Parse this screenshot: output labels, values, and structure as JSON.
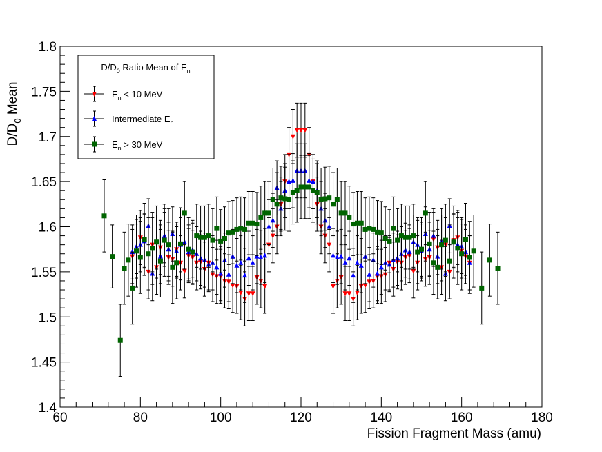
{
  "chart_data": {
    "type": "scatter",
    "title": "",
    "xlabel": "Fission Fragment Mass (amu)",
    "ylabel": {
      "main": "D/D",
      "sub": "0",
      "tail": " Mean"
    },
    "xlim": [
      60,
      180
    ],
    "ylim": [
      1.4,
      1.8
    ],
    "x_ticks": [
      60,
      80,
      100,
      120,
      140,
      160,
      180
    ],
    "y_ticks": [
      1.4,
      1.45,
      1.5,
      1.55,
      1.6,
      1.65,
      1.7,
      1.75,
      1.8
    ],
    "x_tick_labels": [
      "60",
      "80",
      "100",
      "120",
      "140",
      "160",
      "180"
    ],
    "y_tick_labels": [
      "1.4",
      "1.45",
      "1.5",
      "1.55",
      "1.6",
      "1.65",
      "1.7",
      "1.75",
      "1.8"
    ],
    "legend": {
      "position": "top-left",
      "title": {
        "main": "D/D",
        "sub0": "0",
        "mid": " Ratio Mean of E",
        "sub1": "n"
      }
    },
    "series": [
      {
        "name": "low",
        "label": {
          "pre": "E",
          "sub": "n",
          "post": " < 10 MeV"
        },
        "color": "#ff0000",
        "marker": "triangle-down",
        "x": [
          78,
          79,
          80,
          81,
          82,
          83,
          84,
          85,
          86,
          87,
          88,
          89,
          90,
          91,
          92,
          93,
          94,
          95,
          96,
          97,
          98,
          99,
          100,
          101,
          102,
          103,
          104,
          105,
          106,
          107,
          108,
          109,
          110,
          111,
          112,
          113,
          114,
          115,
          116,
          117,
          118,
          119,
          120,
          121,
          122,
          123,
          124,
          125,
          126,
          127,
          128,
          129,
          130,
          131,
          132,
          133,
          134,
          135,
          136,
          137,
          138,
          139,
          140,
          141,
          142,
          143,
          144,
          145,
          146,
          147,
          148,
          149,
          150,
          151,
          152,
          153,
          154,
          155,
          156,
          157,
          158,
          159,
          160,
          161,
          162
        ],
        "y": [
          1.567,
          1.573,
          1.588,
          1.585,
          1.55,
          1.58,
          1.555,
          1.577,
          1.586,
          1.566,
          1.564,
          1.575,
          1.56,
          1.551,
          1.568,
          1.566,
          1.56,
          1.561,
          1.553,
          1.56,
          1.547,
          1.545,
          1.545,
          1.54,
          1.539,
          1.535,
          1.534,
          1.527,
          1.52,
          1.526,
          1.526,
          1.544,
          1.54,
          1.534,
          1.58,
          1.59,
          1.6,
          1.625,
          1.65,
          1.68,
          1.7,
          1.707,
          1.707,
          1.707,
          1.68,
          1.65,
          1.625,
          1.6,
          1.59,
          1.58,
          1.534,
          1.54,
          1.544,
          1.526,
          1.526,
          1.52,
          1.527,
          1.534,
          1.535,
          1.539,
          1.54,
          1.545,
          1.545,
          1.547,
          1.56,
          1.553,
          1.561,
          1.56,
          1.566,
          1.568,
          1.551,
          1.56,
          1.575,
          1.564,
          1.566,
          1.586,
          1.577,
          1.555,
          1.58,
          1.55,
          1.585,
          1.588,
          1.573,
          1.567,
          1.56
        ],
        "err": [
          0.03,
          0.03,
          0.03,
          0.03,
          0.03,
          0.03,
          0.03,
          0.03,
          0.03,
          0.03,
          0.03,
          0.03,
          0.03,
          0.03,
          0.03,
          0.03,
          0.03,
          0.03,
          0.03,
          0.03,
          0.03,
          0.03,
          0.03,
          0.03,
          0.03,
          0.03,
          0.03,
          0.03,
          0.03,
          0.03,
          0.03,
          0.03,
          0.03,
          0.03,
          0.03,
          0.03,
          0.03,
          0.03,
          0.03,
          0.03,
          0.03,
          0.03,
          0.03,
          0.03,
          0.03,
          0.03,
          0.03,
          0.03,
          0.03,
          0.03,
          0.03,
          0.03,
          0.03,
          0.03,
          0.03,
          0.03,
          0.03,
          0.03,
          0.03,
          0.03,
          0.03,
          0.03,
          0.03,
          0.03,
          0.03,
          0.03,
          0.03,
          0.03,
          0.03,
          0.03,
          0.03,
          0.03,
          0.03,
          0.03,
          0.03,
          0.03,
          0.03,
          0.03,
          0.03,
          0.03,
          0.03,
          0.03,
          0.03,
          0.03,
          0.03
        ]
      },
      {
        "name": "intermediate",
        "label": {
          "pre": "Intermediate E",
          "sub": "n",
          "post": ""
        },
        "color": "#0000ff",
        "marker": "triangle-up",
        "x": [
          78,
          79,
          80,
          81,
          82,
          83,
          84,
          85,
          86,
          87,
          88,
          89,
          90,
          91,
          92,
          93,
          94,
          95,
          96,
          97,
          98,
          99,
          100,
          101,
          102,
          103,
          104,
          105,
          106,
          107,
          108,
          109,
          110,
          111,
          112,
          113,
          114,
          115,
          116,
          117,
          118,
          119,
          120,
          121,
          122,
          123,
          124,
          125,
          126,
          127,
          128,
          129,
          130,
          131,
          132,
          133,
          134,
          135,
          136,
          137,
          138,
          139,
          140,
          141,
          142,
          143,
          144,
          145,
          146,
          147,
          148,
          149,
          150,
          151,
          152,
          153,
          154,
          155,
          156,
          157,
          158,
          159,
          160,
          161,
          162
        ],
        "y": [
          1.572,
          1.578,
          1.58,
          1.584,
          1.601,
          1.548,
          1.583,
          1.567,
          1.59,
          1.575,
          1.592,
          1.573,
          1.58,
          1.583,
          1.572,
          1.574,
          1.57,
          1.565,
          1.563,
          1.558,
          1.56,
          1.555,
          1.548,
          1.563,
          1.547,
          1.567,
          1.557,
          1.56,
          1.546,
          1.565,
          1.56,
          1.567,
          1.566,
          1.568,
          1.6,
          1.607,
          1.643,
          1.62,
          1.64,
          1.65,
          1.651,
          1.662,
          1.662,
          1.662,
          1.651,
          1.65,
          1.64,
          1.62,
          1.607,
          1.6,
          1.568,
          1.566,
          1.567,
          1.56,
          1.565,
          1.546,
          1.56,
          1.557,
          1.567,
          1.547,
          1.563,
          1.548,
          1.555,
          1.56,
          1.558,
          1.563,
          1.565,
          1.57,
          1.574,
          1.572,
          1.583,
          1.58,
          1.573,
          1.592,
          1.575,
          1.59,
          1.567,
          1.583,
          1.548,
          1.601,
          1.584,
          1.58,
          1.578,
          1.572,
          1.56
        ],
        "err": [
          0.03,
          0.03,
          0.03,
          0.03,
          0.03,
          0.03,
          0.03,
          0.03,
          0.03,
          0.03,
          0.03,
          0.03,
          0.03,
          0.03,
          0.03,
          0.03,
          0.03,
          0.03,
          0.03,
          0.03,
          0.03,
          0.03,
          0.03,
          0.03,
          0.03,
          0.03,
          0.03,
          0.03,
          0.03,
          0.03,
          0.03,
          0.03,
          0.03,
          0.03,
          0.03,
          0.03,
          0.03,
          0.03,
          0.03,
          0.03,
          0.03,
          0.03,
          0.03,
          0.03,
          0.03,
          0.03,
          0.03,
          0.03,
          0.03,
          0.03,
          0.03,
          0.03,
          0.03,
          0.03,
          0.03,
          0.03,
          0.03,
          0.03,
          0.03,
          0.03,
          0.03,
          0.03,
          0.03,
          0.03,
          0.03,
          0.03,
          0.03,
          0.03,
          0.03,
          0.03,
          0.03,
          0.03,
          0.03,
          0.03,
          0.03,
          0.03,
          0.03,
          0.03,
          0.03,
          0.03,
          0.03,
          0.03,
          0.03,
          0.03,
          0.03
        ]
      },
      {
        "name": "high",
        "label": {
          "pre": "E",
          "sub": "n",
          "post": " > 30 MeV"
        },
        "color": "#006400",
        "marker": "square",
        "x": [
          71,
          73,
          75,
          76,
          77,
          78,
          79,
          80,
          81,
          82,
          83,
          84,
          85,
          86,
          87,
          88,
          89,
          90,
          91,
          92,
          93,
          94,
          95,
          96,
          97,
          98,
          99,
          100,
          101,
          102,
          103,
          104,
          105,
          106,
          107,
          108,
          109,
          110,
          111,
          112,
          113,
          114,
          115,
          116,
          117,
          118,
          119,
          120,
          121,
          122,
          123,
          124,
          125,
          126,
          127,
          128,
          129,
          130,
          131,
          132,
          133,
          134,
          135,
          136,
          137,
          138,
          139,
          140,
          141,
          142,
          143,
          144,
          145,
          146,
          147,
          148,
          149,
          150,
          151,
          152,
          153,
          154,
          155,
          156,
          157,
          158,
          159,
          160,
          161,
          162,
          163,
          165,
          167,
          169
        ],
        "y": [
          1.612,
          1.567,
          1.474,
          1.554,
          1.563,
          1.532,
          1.573,
          1.566,
          1.586,
          1.57,
          1.576,
          1.583,
          1.562,
          1.585,
          1.58,
          1.555,
          1.56,
          1.581,
          1.615,
          1.575,
          1.572,
          1.59,
          1.588,
          1.588,
          1.59,
          1.585,
          1.598,
          1.584,
          1.587,
          1.593,
          1.594,
          1.597,
          1.598,
          1.597,
          1.604,
          1.604,
          1.603,
          1.61,
          1.615,
          1.615,
          1.63,
          1.625,
          1.632,
          1.631,
          1.63,
          1.638,
          1.64,
          1.644,
          1.644,
          1.644,
          1.64,
          1.638,
          1.63,
          1.631,
          1.632,
          1.625,
          1.63,
          1.615,
          1.615,
          1.61,
          1.603,
          1.604,
          1.604,
          1.597,
          1.598,
          1.597,
          1.594,
          1.593,
          1.587,
          1.584,
          1.598,
          1.585,
          1.59,
          1.588,
          1.588,
          1.59,
          1.572,
          1.575,
          1.615,
          1.581,
          1.56,
          1.555,
          1.58,
          1.585,
          1.562,
          1.583,
          1.576,
          1.57,
          1.586,
          1.566,
          1.573,
          1.532,
          1.563,
          1.554
        ],
        "err": [
          0.04,
          0.035,
          0.04,
          0.04,
          0.04,
          0.04,
          0.04,
          0.04,
          0.04,
          0.04,
          0.04,
          0.04,
          0.04,
          0.04,
          0.04,
          0.04,
          0.04,
          0.04,
          0.035,
          0.035,
          0.035,
          0.035,
          0.035,
          0.035,
          0.035,
          0.035,
          0.035,
          0.035,
          0.035,
          0.035,
          0.035,
          0.035,
          0.035,
          0.035,
          0.035,
          0.035,
          0.035,
          0.035,
          0.035,
          0.035,
          0.035,
          0.035,
          0.035,
          0.035,
          0.035,
          0.035,
          0.035,
          0.035,
          0.035,
          0.035,
          0.035,
          0.035,
          0.035,
          0.035,
          0.035,
          0.035,
          0.035,
          0.035,
          0.035,
          0.035,
          0.035,
          0.035,
          0.035,
          0.035,
          0.035,
          0.035,
          0.035,
          0.035,
          0.035,
          0.035,
          0.035,
          0.035,
          0.035,
          0.035,
          0.035,
          0.035,
          0.035,
          0.035,
          0.035,
          0.035,
          0.035,
          0.035,
          0.04,
          0.04,
          0.04,
          0.04,
          0.04,
          0.04,
          0.04,
          0.04,
          0.04,
          0.04,
          0.04,
          0.04
        ]
      }
    ]
  }
}
